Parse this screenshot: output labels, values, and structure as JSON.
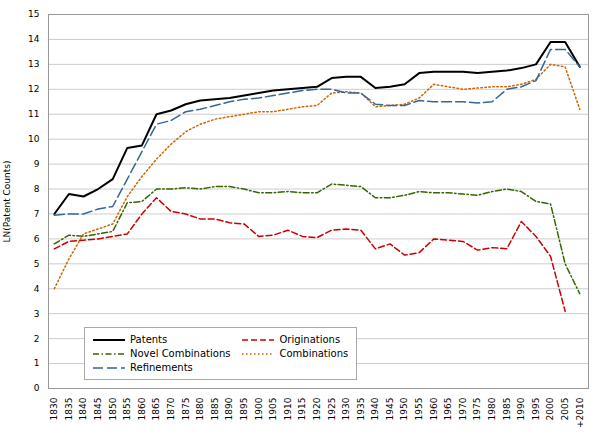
{
  "chart_data": {
    "type": "line",
    "ylabel": "LN(Patent Counts)",
    "x": [
      1830,
      1835,
      1840,
      1845,
      1850,
      1855,
      1860,
      1865,
      1870,
      1875,
      1880,
      1885,
      1890,
      1895,
      1900,
      1905,
      1910,
      1915,
      1920,
      1925,
      1930,
      1935,
      1940,
      1945,
      1950,
      1955,
      1960,
      1965,
      1970,
      1975,
      1980,
      1985,
      1990,
      1995,
      2000,
      2005,
      2010
    ],
    "series": [
      {
        "name": "Patents",
        "color": "#000000",
        "line_style": "solid",
        "values": [
          7.0,
          7.8,
          7.7,
          8.0,
          8.4,
          9.65,
          9.75,
          11.0,
          11.15,
          11.4,
          11.55,
          11.6,
          11.65,
          11.75,
          11.85,
          11.95,
          12.0,
          12.05,
          12.1,
          12.45,
          12.5,
          12.5,
          12.05,
          12.1,
          12.2,
          12.65,
          12.7,
          12.7,
          12.7,
          12.65,
          12.7,
          12.75,
          12.85,
          13.0,
          13.9,
          13.9,
          12.9
        ]
      },
      {
        "name": "Originations",
        "color": "#cc0000",
        "line_style": "dashed",
        "values": [
          5.6,
          5.9,
          5.95,
          6.0,
          6.1,
          6.2,
          7.0,
          7.65,
          7.1,
          7.0,
          6.8,
          6.8,
          6.65,
          6.6,
          6.1,
          6.15,
          6.35,
          6.1,
          6.05,
          6.35,
          6.4,
          6.35,
          5.6,
          5.8,
          5.35,
          5.45,
          6.0,
          5.95,
          5.9,
          5.55,
          5.65,
          5.6,
          6.7,
          6.1,
          5.3,
          3.1,
          null
        ]
      },
      {
        "name": "Novel Combinations",
        "color": "#336600",
        "line_style": "dash-dot",
        "values": [
          5.8,
          6.15,
          6.1,
          6.2,
          6.3,
          7.45,
          7.5,
          8.0,
          8.0,
          8.05,
          8.0,
          8.1,
          8.1,
          8.0,
          7.85,
          7.85,
          7.9,
          7.85,
          7.85,
          8.2,
          8.15,
          8.1,
          7.65,
          7.65,
          7.75,
          7.9,
          7.85,
          7.85,
          7.8,
          7.75,
          7.9,
          8.0,
          7.9,
          7.5,
          7.4,
          5.0,
          3.8
        ]
      },
      {
        "name": "Combinations",
        "color": "#cc6600",
        "line_style": "dotted",
        "values": [
          4.0,
          5.2,
          6.2,
          6.4,
          6.6,
          7.7,
          8.5,
          9.2,
          9.8,
          10.3,
          10.6,
          10.8,
          10.9,
          11.0,
          11.1,
          11.1,
          11.2,
          11.3,
          11.35,
          11.85,
          11.9,
          11.85,
          11.3,
          11.35,
          11.4,
          11.65,
          12.2,
          12.1,
          12.0,
          12.05,
          12.1,
          12.1,
          12.2,
          12.4,
          13.0,
          12.9,
          11.2
        ]
      },
      {
        "name": "Refinements",
        "color": "#336699",
        "line_style": "long-dash",
        "values": [
          6.95,
          7.0,
          7.0,
          7.2,
          7.3,
          8.4,
          9.5,
          10.6,
          10.75,
          11.1,
          11.2,
          11.35,
          11.5,
          11.6,
          11.65,
          11.75,
          11.85,
          11.95,
          12.0,
          12.0,
          11.85,
          11.85,
          11.4,
          11.35,
          11.35,
          11.55,
          11.5,
          11.5,
          11.5,
          11.45,
          11.5,
          12.0,
          12.1,
          12.35,
          13.6,
          13.6,
          12.9
        ]
      }
    ],
    "xlim": [
      1828,
      2013
    ],
    "xticks": [
      1830,
      1835,
      1840,
      1845,
      1850,
      1855,
      1860,
      1865,
      1870,
      1875,
      1880,
      1885,
      1890,
      1895,
      1900,
      1905,
      1910,
      1915,
      1920,
      1925,
      1930,
      1935,
      1940,
      1945,
      1950,
      1955,
      1960,
      1965,
      1970,
      1975,
      1980,
      1985,
      1990,
      1995,
      2000,
      2005,
      {
        "value": 2010,
        "label": "+2010"
      }
    ],
    "ylim": [
      0,
      15
    ],
    "yticks": [
      0,
      1,
      2,
      3,
      4,
      5,
      6,
      7,
      8,
      9,
      10,
      11,
      12,
      13,
      14,
      15
    ],
    "grid": "y",
    "legend": "lower left"
  }
}
